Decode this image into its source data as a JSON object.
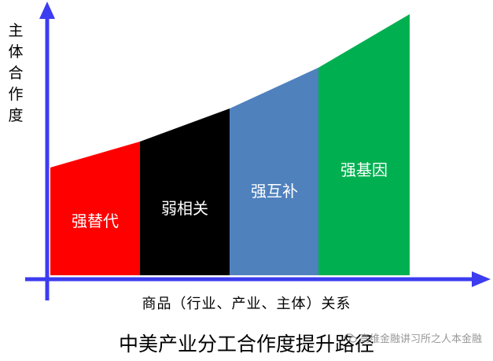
{
  "y_axis_label": "主体合作度",
  "x_axis_label": "商品（行业、产业、主体）关系",
  "caption": "中美产业分工合作度提升路径",
  "watermark": "高维金融讲习所之人本金融",
  "colors": {
    "axis": "#3c3cf0",
    "stage1": "#ff0000",
    "stage2": "#000000",
    "stage3": "#4f81bd",
    "stage4": "#00b050",
    "label_text": "#ffffff"
  },
  "stages": [
    {
      "label": "强替代",
      "color": "#ff0000"
    },
    {
      "label": "弱相关",
      "color": "#000000"
    },
    {
      "label": "强互补",
      "color": "#4f81bd"
    },
    {
      "label": "强基因",
      "color": "#00b050"
    }
  ]
}
